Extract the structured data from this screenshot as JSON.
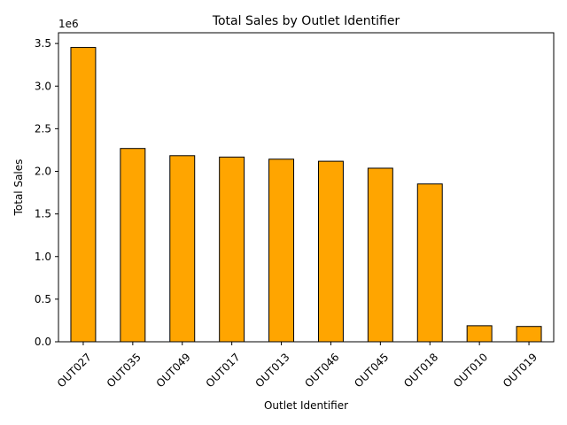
{
  "chart_data": {
    "type": "bar",
    "title": "Total Sales by Outlet Identifier",
    "xlabel": "Outlet Identifier",
    "ylabel": "Total Sales",
    "offset_label": "1e6",
    "categories": [
      "OUT027",
      "OUT035",
      "OUT049",
      "OUT017",
      "OUT013",
      "OUT046",
      "OUT045",
      "OUT018",
      "OUT010",
      "OUT019"
    ],
    "values": [
      3453926,
      2268123,
      2183970,
      2167465,
      2142664,
      2118395,
      2036725,
      1851823,
      188340,
      179694
    ],
    "ylim": [
      0,
      3626000
    ],
    "yticks": [
      0,
      500000,
      1000000,
      1500000,
      2000000,
      2500000,
      3000000,
      3500000
    ],
    "ytick_labels": [
      "0.0",
      "0.5",
      "1.0",
      "1.5",
      "2.0",
      "2.5",
      "3.0",
      "3.5"
    ],
    "bar_color": "#FFA500",
    "edge_color": "#000000",
    "grid": false,
    "legend": "none"
  }
}
